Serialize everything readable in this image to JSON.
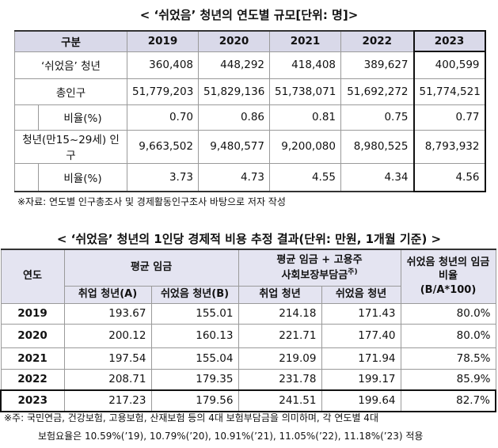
{
  "table1": {
    "title": "< ‘쉬었음’ 청년의 연도별 규모[단위: 명]>",
    "header": [
      "구분",
      "2019",
      "2020",
      "2021",
      "2022",
      "2023"
    ],
    "rows": [
      [
        "‘쉬었음’ 청년",
        "360,408",
        "448,292",
        "418,408",
        "389,627",
        "400,599"
      ],
      [
        "총인구",
        "51,779,203",
        "51,829,136",
        "51,738,071",
        "51,692,272",
        "51,774,521"
      ],
      [
        "비율(%)",
        "0.70",
        "0.86",
        "0.81",
        "0.75",
        "0.77"
      ],
      [
        "청년(만15~29세) 인구",
        "9,663,502",
        "9,480,577",
        "9,200,080",
        "8,980,525",
        "8,793,932"
      ],
      [
        "비율(%)",
        "3.73",
        "4.73",
        "4.55",
        "4.34",
        "4.56"
      ]
    ],
    "note": "※자료: 연도별 인구총조사 및 경제활동인구조사 바탕으로 저자 작성"
  },
  "table2": {
    "title": "< ‘쉬었음’ 청년의 1인당 경제적 비용 추정 결과(단위: 만원, 1개월 기준) >",
    "header": {
      "year": "연도",
      "avg_wage": "평균 임금",
      "wage_plus": [
        "평균 임금 + 고용주",
        "사회보장부담금"
      ],
      "wage_plus_note": "주)",
      "ratio": [
        "쉬었음 청년의 임금 비율",
        "(B/A*100)"
      ]
    },
    "subheader": [
      "취업 청년(A)",
      "쉬었음 청년(B)",
      "취업 청년",
      "쉬었음 청년"
    ],
    "rows": [
      [
        "2019",
        "193.67",
        "155.01",
        "214.18",
        "171.43",
        "80.0%"
      ],
      [
        "2020",
        "200.12",
        "160.13",
        "221.71",
        "177.40",
        "80.0%"
      ],
      [
        "2021",
        "197.54",
        "155.04",
        "219.09",
        "171.94",
        "78.5%"
      ],
      [
        "2022",
        "208.71",
        "179.35",
        "231.78",
        "199.17",
        "85.9%"
      ],
      [
        "2023",
        "217.23",
        "179.56",
        "241.51",
        "199.64",
        "82.7%"
      ]
    ],
    "note": [
      "※주: 국민연금, 건강보험, 고용보험, 산재보험 등의 4대 보험부담금을 의미하며, 각 연도별 4대",
      "보험요율은 10.59%(’19), 10.79%(’20), 10.91%(’21), 11.05%(’22), 11.18%(’23) 적용"
    ]
  }
}
